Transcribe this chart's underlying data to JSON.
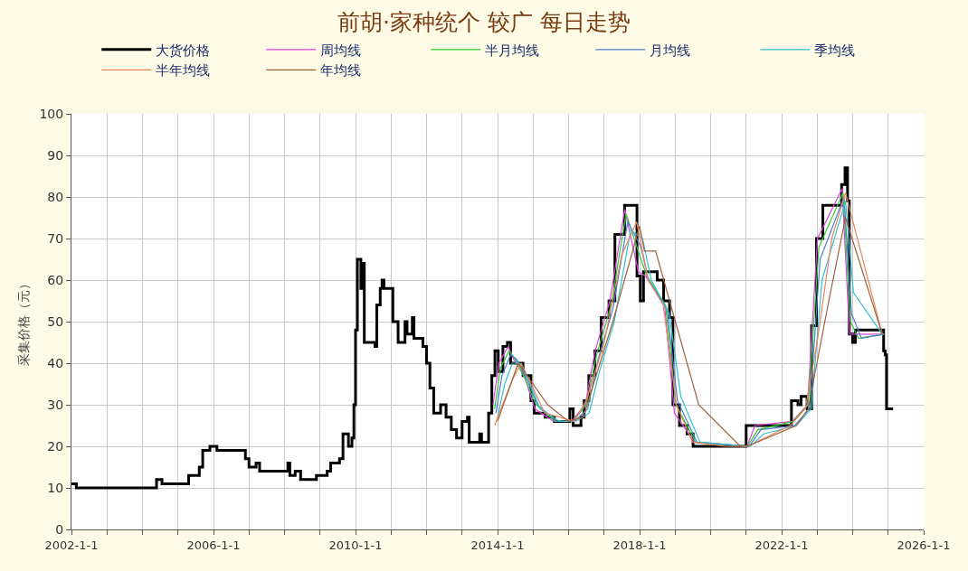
{
  "chart_data": {
    "type": "line",
    "title": "前胡·家种统个 较广 每日走势",
    "ylabel": "采集价格（元）",
    "xlim": [
      "2002-01-01",
      "2026-01-01"
    ],
    "xticks": [
      {
        "value": "2002-01-01",
        "label": "2002-1-1"
      },
      {
        "value": "2003-01-01",
        "label": null
      },
      {
        "value": "2004-01-01",
        "label": null
      },
      {
        "value": "2005-01-01",
        "label": null
      },
      {
        "value": "2006-01-01",
        "label": "2006-1-1"
      },
      {
        "value": "2007-01-01",
        "label": null
      },
      {
        "value": "2008-01-01",
        "label": null
      },
      {
        "value": "2009-01-01",
        "label": null
      },
      {
        "value": "2010-01-01",
        "label": "2010-1-1"
      },
      {
        "value": "2011-01-01",
        "label": null
      },
      {
        "value": "2012-01-01",
        "label": null
      },
      {
        "value": "2013-01-01",
        "label": null
      },
      {
        "value": "2014-01-01",
        "label": "2014-1-1"
      },
      {
        "value": "2015-01-01",
        "label": null
      },
      {
        "value": "2016-01-01",
        "label": null
      },
      {
        "value": "2017-01-01",
        "label": null
      },
      {
        "value": "2018-01-01",
        "label": "2018-1-1"
      },
      {
        "value": "2019-01-01",
        "label": null
      },
      {
        "value": "2020-01-01",
        "label": null
      },
      {
        "value": "2021-01-01",
        "label": null
      },
      {
        "value": "2022-01-01",
        "label": "2022-1-1"
      },
      {
        "value": "2023-01-01",
        "label": null
      },
      {
        "value": "2024-01-01",
        "label": null
      },
      {
        "value": "2025-01-01",
        "label": null
      },
      {
        "value": "2026-01-01",
        "label": "2026-1-1"
      }
    ],
    "ylim": [
      0,
      100
    ],
    "yticks": [
      0,
      10,
      20,
      30,
      40,
      50,
      60,
      70,
      80,
      90,
      100
    ],
    "grid": true,
    "legend": "top",
    "line_style": "solid",
    "series": [
      {
        "name": "大货价格",
        "color": "#000000",
        "type": "step",
        "x": [
          "2002-01-01",
          "2002-02-20",
          "2004-04-01",
          "2004-05-25",
          "2004-07-20",
          "2005-03-15",
          "2005-04-20",
          "2005-08-08",
          "2005-09-12",
          "2005-11-25",
          "2006-02-05",
          "2006-09-12",
          "2006-11-25",
          "2007-01-01",
          "2007-03-15",
          "2007-04-20",
          "2008-01-01",
          "2008-02-05",
          "2008-02-25",
          "2008-04-20",
          "2008-06-15",
          "2008-11-25",
          "2009-03-15",
          "2009-04-20",
          "2009-07-20",
          "2009-08-25",
          "2009-10-20",
          "2009-11-25",
          "2009-12-15",
          "2010-01-01",
          "2010-01-20",
          "2010-02-25",
          "2010-03-15",
          "2010-04-01",
          "2010-07-20",
          "2010-08-08",
          "2010-09-12",
          "2010-10-01",
          "2010-10-20",
          "2011-01-20",
          "2011-03-15",
          "2011-05-25",
          "2011-06-15",
          "2011-08-08",
          "2011-08-25",
          "2011-11-25",
          "2012-01-01",
          "2012-02-05",
          "2012-03-15",
          "2012-05-25",
          "2012-07-20",
          "2012-09-12",
          "2012-11-05",
          "2013-01-01",
          "2013-02-25",
          "2013-03-15",
          "2013-07-01",
          "2013-07-20",
          "2013-10-01",
          "2013-11-03",
          "2013-12-05",
          "2014-01-08",
          "2014-02-25",
          "2014-04-12",
          "2014-05-15",
          "2014-09-20",
          "2014-12-10",
          "2015-01-12",
          "2015-05-05",
          "2015-08-08",
          "2016-01-15",
          "2016-02-18",
          "2016-05-08",
          "2016-06-10",
          "2016-07-28",
          "2016-09-28",
          "2016-12-01",
          "2017-02-20",
          "2017-04-22",
          "2017-07-30",
          "2017-12-05",
          "2018-01-08",
          "2018-02-10",
          "2018-07-01",
          "2018-09-05",
          "2018-11-05",
          "2018-12-10",
          "2019-02-15",
          "2019-05-05",
          "2019-07-05",
          "2021-01-01",
          "2022-04-12",
          "2022-06-18",
          "2022-07-20",
          "2022-09-20",
          "2022-11-05",
          "2022-12-25",
          "2023-03-01",
          "2023-09-10",
          "2023-10-15",
          "2023-11-10",
          "2023-11-28",
          "2024-01-01",
          "2024-01-30",
          "2024-11-15",
          "2024-12-01",
          "2024-12-15",
          "2025-02-20"
        ],
        "values": [
          11,
          10,
          10,
          12,
          11,
          11,
          13,
          15,
          19,
          20,
          19,
          19,
          17,
          15,
          16,
          14,
          14,
          16,
          13,
          14,
          12,
          13,
          14,
          16,
          17,
          23,
          20,
          22,
          30,
          48,
          65,
          58,
          64,
          45,
          44,
          54,
          58,
          60,
          58,
          50,
          45,
          50,
          47,
          51,
          46,
          44,
          40,
          34,
          28,
          30,
          27,
          24,
          22,
          26,
          27,
          21,
          23,
          21,
          28,
          37,
          43,
          38,
          44,
          45,
          40,
          37,
          31,
          28,
          27,
          26,
          29,
          25,
          27,
          31,
          37,
          43,
          51,
          55,
          71,
          78,
          61,
          55,
          62,
          60,
          55,
          51,
          30,
          25,
          23,
          20,
          25,
          31,
          30,
          32,
          29,
          49,
          70,
          78,
          83,
          87,
          79,
          47,
          45,
          48,
          43,
          42,
          29,
          29
        ]
      },
      {
        "name": "周均线",
        "color": "#e040e0",
        "x": [
          "2013-11-15",
          "2014-01-15",
          "2014-04-20",
          "2014-06-15",
          "2014-10-01",
          "2015-01-20",
          "2015-08-01",
          "2016-02-01",
          "2016-06-20",
          "2016-10-01",
          "2017-03-01",
          "2017-08-01",
          "2017-12-20",
          "2018-03-01",
          "2018-09-15",
          "2018-12-25",
          "2019-07-20",
          "2021-01-10",
          "2021-04-01",
          "2022-04-20",
          "2022-09-25",
          "2023-01-05",
          "2023-09-15",
          "2023-12-01",
          "2024-02-15",
          "2024-11-20"
        ],
        "values": [
          30,
          40,
          44,
          41,
          37,
          29,
          26,
          26,
          30,
          43,
          55,
          77,
          62,
          61,
          54,
          28,
          21,
          20,
          25,
          26,
          30,
          70,
          82,
          47,
          47,
          47
        ]
      },
      {
        "name": "半月均线",
        "color": "#33cc33",
        "x": [
          "2013-12-01",
          "2014-02-01",
          "2014-05-01",
          "2014-07-01",
          "2014-10-15",
          "2015-02-01",
          "2015-08-15",
          "2016-02-15",
          "2016-07-01",
          "2016-10-15",
          "2017-03-15",
          "2017-08-15",
          "2018-01-01",
          "2018-03-15",
          "2018-09-25",
          "2019-01-10",
          "2019-08-01",
          "2021-01-15",
          "2021-05-01",
          "2022-05-01",
          "2022-10-01",
          "2023-01-20",
          "2023-09-25",
          "2023-12-10",
          "2024-03-01",
          "2024-11-20"
        ],
        "values": [
          29,
          39,
          43,
          41,
          36,
          30,
          26,
          26,
          30,
          42,
          54,
          76,
          66,
          61,
          54,
          30,
          21,
          20,
          24,
          26,
          30,
          68,
          81,
          50,
          46,
          47
        ]
      },
      {
        "name": "月均线",
        "color": "#4a7fd0",
        "x": [
          "2013-12-15",
          "2014-02-15",
          "2014-05-15",
          "2014-07-15",
          "2014-11-01",
          "2015-02-15",
          "2015-09-01",
          "2016-03-01",
          "2016-07-15",
          "2016-11-01",
          "2017-04-01",
          "2017-09-01",
          "2018-01-15",
          "2018-04-01",
          "2018-10-10",
          "2019-01-25",
          "2019-08-15",
          "2021-02-01",
          "2021-06-01",
          "2022-05-15",
          "2022-10-15",
          "2023-02-01",
          "2023-10-05",
          "2023-12-20",
          "2024-04-01",
          "2024-11-20"
        ],
        "values": [
          28,
          37,
          42,
          41,
          36,
          30,
          26,
          26,
          29,
          41,
          53,
          74,
          68,
          60,
          53,
          31,
          21,
          20,
          24,
          25,
          29,
          65,
          80,
          52,
          46,
          47
        ]
      },
      {
        "name": "季均线",
        "color": "#33c0d0",
        "x": [
          "2014-01-01",
          "2014-03-15",
          "2014-06-01",
          "2014-08-15",
          "2014-12-01",
          "2015-03-15",
          "2015-10-01",
          "2016-03-15",
          "2016-08-01",
          "2016-11-15",
          "2017-04-15",
          "2017-10-01",
          "2018-02-01",
          "2018-05-01",
          "2018-11-01",
          "2019-03-01",
          "2019-09-15",
          "2021-02-15",
          "2021-07-01",
          "2022-06-01",
          "2022-11-01",
          "2023-02-20",
          "2023-10-20",
          "2024-01-10",
          "2024-11-01"
        ],
        "values": [
          27,
          35,
          40,
          40,
          35,
          29,
          26,
          26,
          28,
          38,
          50,
          72,
          70,
          60,
          52,
          32,
          21,
          20,
          23,
          25,
          29,
          60,
          79,
          57,
          47
        ]
      },
      {
        "name": "半年均线",
        "color": "#e8855a",
        "x": [
          "2013-12-01",
          "2014-06-01",
          "2014-09-01",
          "2015-05-01",
          "2016-03-01",
          "2016-07-01",
          "2017-01-01",
          "2017-07-01",
          "2017-12-01",
          "2018-04-01",
          "2018-09-01",
          "2019-01-15",
          "2019-07-01",
          "2020-06-01",
          "2021-01-15",
          "2022-04-01",
          "2022-09-01",
          "2023-01-01",
          "2023-06-01",
          "2023-10-20",
          "2024-11-01"
        ],
        "values": [
          25,
          36,
          40,
          28,
          26,
          31,
          45,
          66,
          74,
          60,
          54,
          30,
          21,
          20,
          20,
          25,
          29,
          45,
          70,
          81,
          47
        ]
      },
      {
        "name": "年均线",
        "color": "#a0603a",
        "x": [
          "2014-01-01",
          "2014-08-01",
          "2015-06-01",
          "2016-01-01",
          "2016-06-01",
          "2017-04-01",
          "2018-01-01",
          "2018-02-20",
          "2018-06-15",
          "2019-09-01",
          "2020-11-01",
          "2021-01-15",
          "2022-06-01",
          "2022-10-01",
          "2023-05-01",
          "2023-10-20",
          "2024-11-01"
        ],
        "values": [
          26,
          40,
          30,
          26,
          27,
          50,
          73,
          67,
          67,
          30,
          20,
          20,
          25,
          29,
          55,
          75,
          47
        ]
      }
    ]
  }
}
